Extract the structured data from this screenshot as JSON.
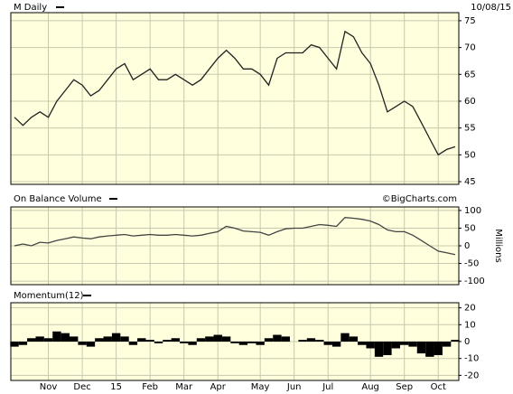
{
  "chart_data": [
    {
      "type": "line",
      "title": "M Daily",
      "date": "10/08/15",
      "color": "#222222",
      "values": [
        57,
        55.5,
        57,
        58,
        57,
        60,
        62,
        64,
        63,
        61,
        62,
        64,
        66,
        67,
        64,
        65,
        66,
        64,
        64,
        65,
        64,
        63,
        64,
        66,
        68,
        69.5,
        68,
        66,
        66,
        65,
        63,
        68,
        69,
        69,
        69,
        70.5,
        70,
        68,
        66,
        73,
        72,
        69,
        67,
        63,
        58,
        59,
        60,
        59,
        56,
        53,
        50,
        51,
        51.5
      ],
      "ylim": [
        44.5,
        76.5
      ],
      "yticks": [
        45,
        50,
        55,
        60,
        65,
        70,
        75
      ],
      "grid": true
    },
    {
      "type": "line",
      "title": "On Balance Volume",
      "source": "©BigCharts.com",
      "y_label": "Millions",
      "color": "#444444",
      "values": [
        0,
        5,
        0,
        10,
        8,
        15,
        20,
        25,
        22,
        20,
        25,
        28,
        30,
        32,
        28,
        30,
        32,
        30,
        30,
        32,
        30,
        28,
        30,
        35,
        40,
        55,
        50,
        42,
        40,
        38,
        30,
        40,
        48,
        50,
        50,
        55,
        60,
        58,
        55,
        80,
        78,
        75,
        70,
        60,
        45,
        40,
        40,
        30,
        15,
        0,
        -15,
        -20,
        -25
      ],
      "ylim": [
        -110,
        110
      ],
      "yticks": [
        100,
        50,
        0,
        -50,
        -100
      ],
      "grid": true
    },
    {
      "type": "bar",
      "title": "Momentum(12)",
      "color": "#000000",
      "categories": [
        null,
        null,
        null,
        null,
        "Nov",
        null,
        null,
        null,
        "Dec",
        null,
        null,
        null,
        "15",
        null,
        null,
        null,
        "Feb",
        null,
        null,
        null,
        "Mar",
        null,
        null,
        null,
        "Apr",
        null,
        null,
        null,
        null,
        "May",
        null,
        null,
        null,
        "Jun",
        null,
        null,
        null,
        "Jul",
        null,
        null,
        null,
        null,
        "Aug",
        null,
        null,
        null,
        "Sep",
        null,
        null,
        null,
        "Oct",
        null,
        null
      ],
      "values": [
        -3,
        -2,
        2,
        3,
        2,
        6,
        5,
        3,
        -2,
        -3,
        2,
        3,
        5,
        3,
        -2,
        2,
        1,
        -1,
        1,
        2,
        -1,
        -2,
        2,
        3,
        4,
        3,
        -1,
        -2,
        -1,
        -2,
        2,
        4,
        3,
        0,
        1,
        2,
        1,
        -2,
        -3,
        5,
        3,
        -2,
        -4,
        -9,
        -8,
        -4,
        -2,
        -3,
        -7,
        -9,
        -8,
        -3,
        1
      ],
      "ylim": [
        -23,
        23
      ],
      "yticks": [
        20,
        10,
        0,
        -10,
        -20
      ],
      "grid": true
    }
  ]
}
